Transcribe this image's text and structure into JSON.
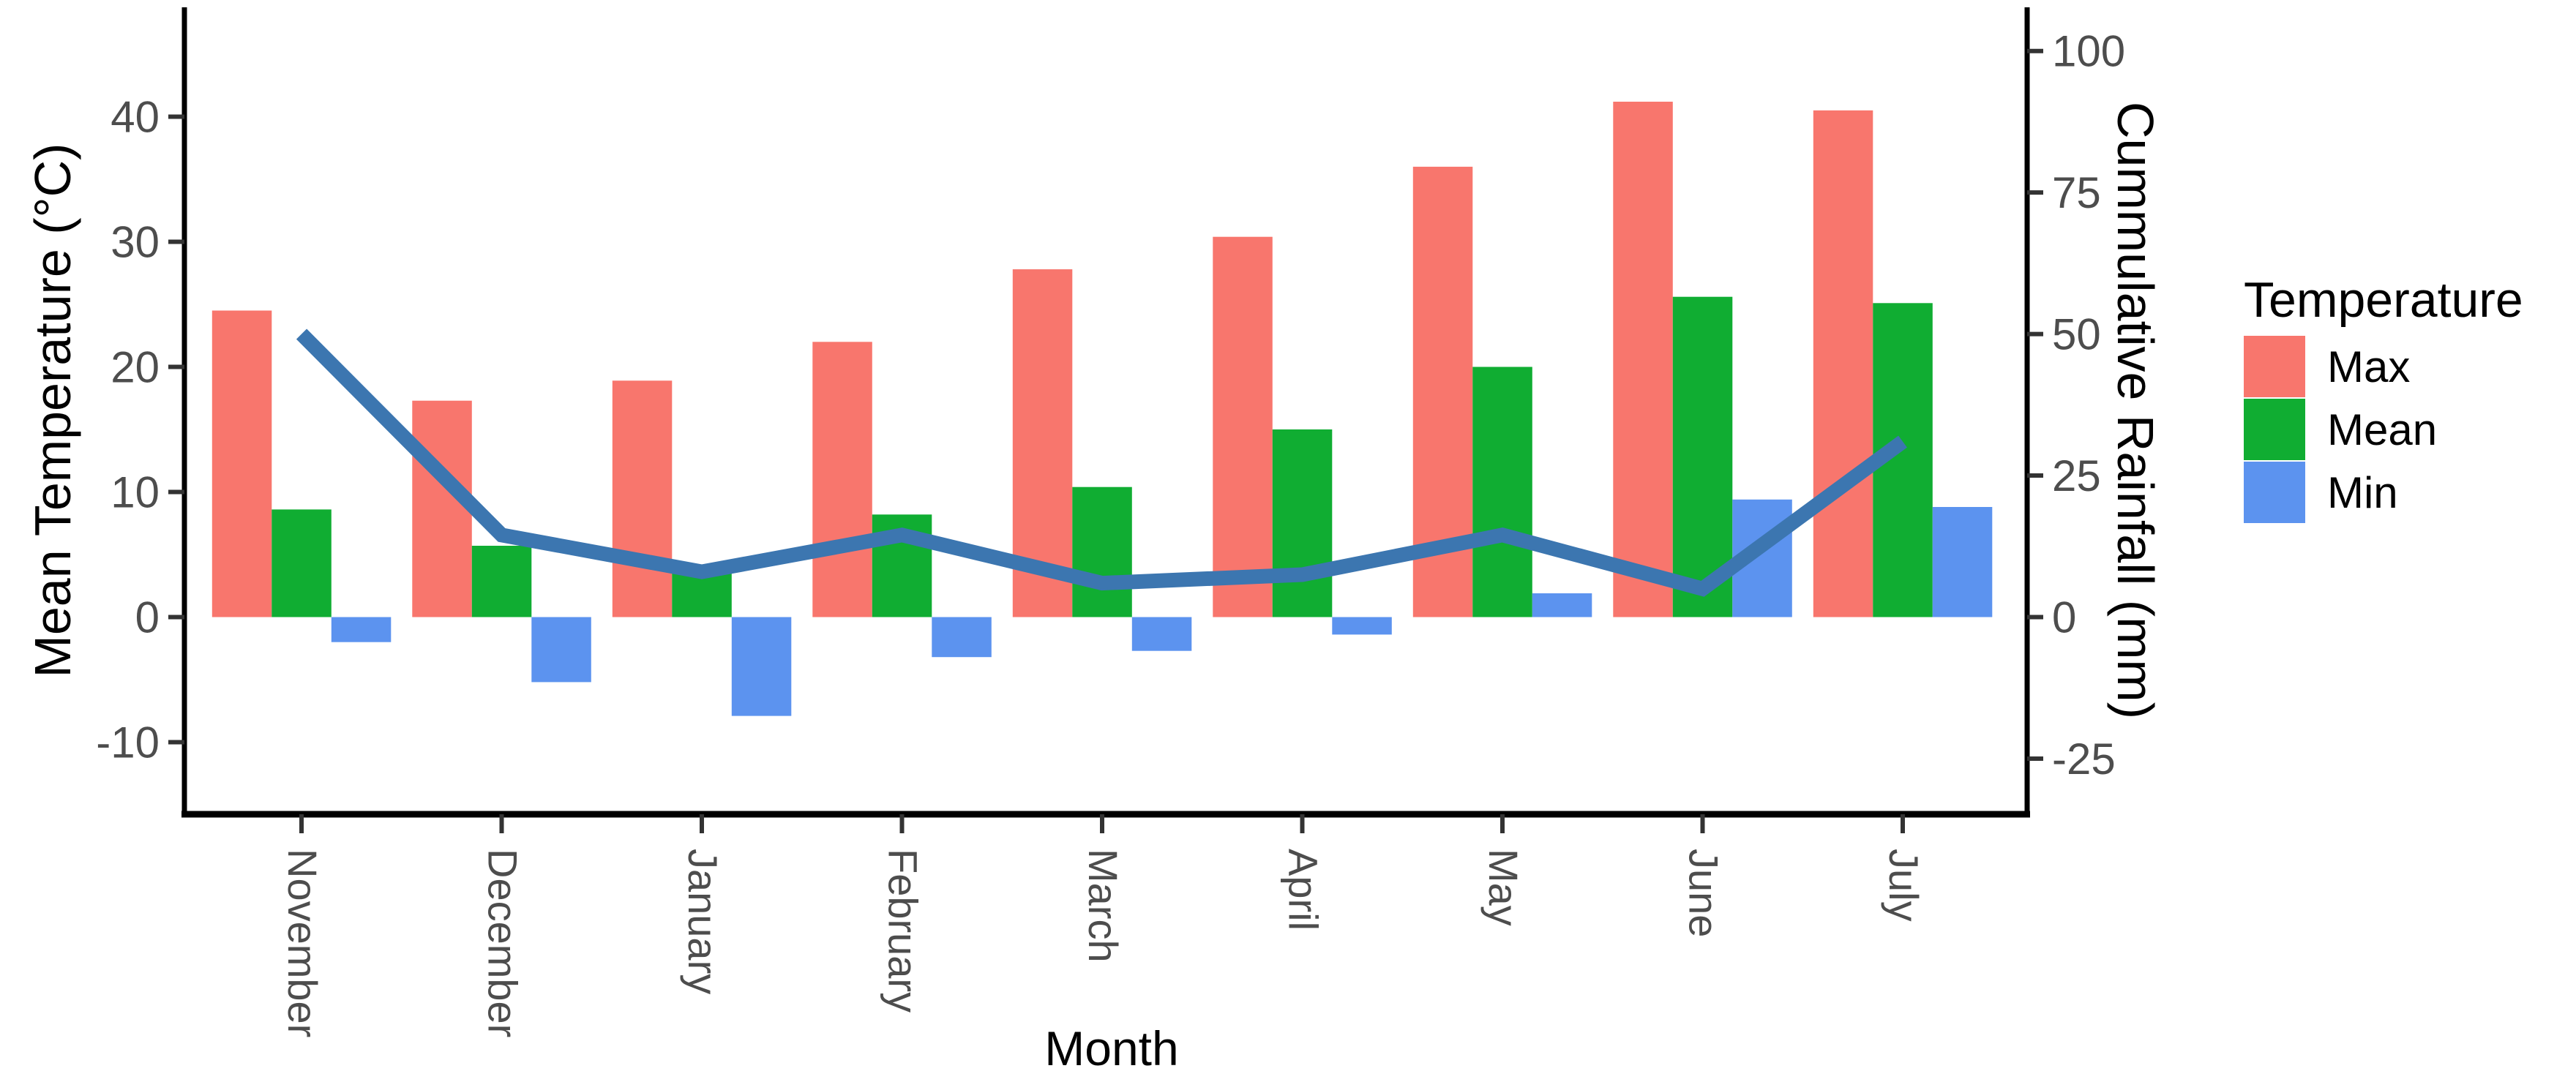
{
  "figure": {
    "left_axis_title": "Mean Temperature (°C)",
    "right_axis_title": "Cummulative Rainfall (mm)",
    "x_axis_title": "Month",
    "legend": {
      "title": "Temperature",
      "items": [
        {
          "label": "Max",
          "color": "#F8766D"
        },
        {
          "label": "Mean",
          "color": "#10AD32"
        },
        {
          "label": "Min",
          "color": "#5C93EF"
        }
      ]
    }
  },
  "chart_data": {
    "type": "bar",
    "subtype": "grouped-bars-with-secondary-axis-line",
    "categories": [
      "November",
      "December",
      "January",
      "February",
      "March",
      "April",
      "May",
      "June",
      "July"
    ],
    "series": [
      {
        "name": "Max",
        "axis": "left",
        "color": "#F8766D",
        "values": [
          24.5,
          17.3,
          18.9,
          22.0,
          27.8,
          30.4,
          36.0,
          41.2,
          40.5
        ]
      },
      {
        "name": "Mean",
        "axis": "left",
        "color": "#10AD32",
        "values": [
          8.6,
          5.7,
          3.7,
          8.2,
          10.4,
          15.0,
          20.0,
          25.6,
          25.1
        ]
      },
      {
        "name": "Min",
        "axis": "left",
        "color": "#5C93EF",
        "values": [
          -2.0,
          -5.2,
          -7.9,
          -3.2,
          -2.7,
          -1.4,
          1.9,
          9.4,
          8.8
        ]
      }
    ],
    "line_series": {
      "name": "Cummulative Rainfall",
      "axis": "right",
      "color": "#3C76B0",
      "values_mm": [
        50,
        14.5,
        8,
        14.5,
        6,
        7.5,
        14.5,
        5,
        31
      ]
    },
    "title": "",
    "xlabel": "Month",
    "ylabel_left": "Mean Temperature (°C)",
    "ylabel_right": "Cummulative Rainfall (mm)",
    "yticks_left": [
      -10,
      0,
      10,
      20,
      30,
      40
    ],
    "yticks_right": [
      -25,
      0,
      25,
      50,
      75,
      100
    ],
    "ylim_left": [
      -15.8,
      48.5
    ],
    "right_to_left_scale_factor": 2.21,
    "grid": false,
    "legend_position": "right",
    "legend_title": "Temperature",
    "colors": {
      "max_bar": "#F8766D",
      "mean_bar": "#10AD32",
      "min_bar": "#5C93EF",
      "rainfall_line": "#3C76B0",
      "axis_line": "#000000",
      "tick_text": "#4d4d4d",
      "title_text": "#000000",
      "background": "#ffffff"
    }
  }
}
